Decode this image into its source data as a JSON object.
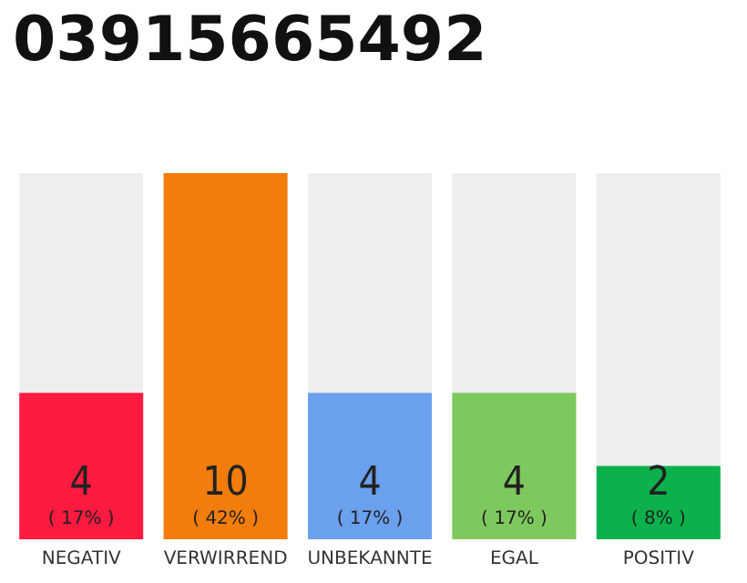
{
  "chart_data": {
    "type": "bar",
    "title": "03915665492",
    "categories": [
      "NEGATIV",
      "VERWIRREND",
      "UNBEKANNTE",
      "EGAL",
      "POSITIV"
    ],
    "values": [
      4,
      10,
      4,
      4,
      2
    ],
    "colors": [
      "#ff1a40",
      "#f27d0c",
      "#6aa0ee",
      "#7dc95e",
      "#0db14b"
    ],
    "value_labels": [
      "4\n( 17% )",
      "10\n( 42% )",
      "4\n( 17% )",
      "4\n( 17% )",
      "2\n( 8% )"
    ]
  }
}
